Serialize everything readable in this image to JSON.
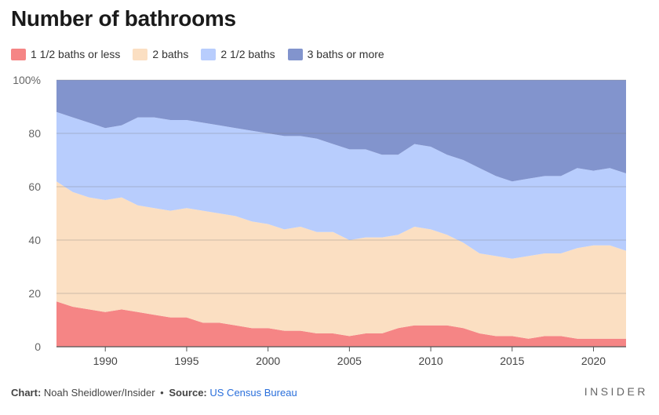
{
  "title": "Number of bathrooms",
  "legend": [
    {
      "label": "1 1/2 baths or less",
      "color": "#f58585"
    },
    {
      "label": "2 baths",
      "color": "#fbdfc2"
    },
    {
      "label": "2 1/2 baths",
      "color": "#b8cdfd"
    },
    {
      "label": "3 baths or more",
      "color": "#8294cd"
    }
  ],
  "footer": {
    "chart_label": "Chart:",
    "chart_author": "Noah Sheidlower/Insider",
    "separator": "•",
    "source_label": "Source:",
    "source_name": "US Census Bureau"
  },
  "brand": "INSIDER",
  "chart_data": {
    "type": "area",
    "stacked": true,
    "title": "Number of bathrooms",
    "xlabel": "",
    "ylabel": "",
    "xlim": [
      1987,
      2022
    ],
    "ylim": [
      0,
      100
    ],
    "x_ticks": [
      1990,
      1995,
      2000,
      2005,
      2010,
      2015,
      2020
    ],
    "y_ticks": [
      0,
      20,
      40,
      60,
      80,
      100
    ],
    "y_tick_labels": [
      "0",
      "20",
      "40",
      "60",
      "80",
      "100%"
    ],
    "grid": "horizontal",
    "legend_position": "top-left",
    "x": [
      1987,
      1988,
      1989,
      1990,
      1991,
      1992,
      1993,
      1994,
      1995,
      1996,
      1997,
      1998,
      1999,
      2000,
      2001,
      2002,
      2003,
      2004,
      2005,
      2006,
      2007,
      2008,
      2009,
      2010,
      2011,
      2012,
      2013,
      2014,
      2015,
      2016,
      2017,
      2018,
      2019,
      2020,
      2021,
      2022
    ],
    "series": [
      {
        "name": "1 1/2 baths or less",
        "color": "#f58585",
        "values": [
          17,
          15,
          14,
          13,
          14,
          13,
          12,
          11,
          11,
          9,
          9,
          8,
          7,
          7,
          6,
          6,
          5,
          5,
          4,
          5,
          5,
          7,
          8,
          8,
          8,
          7,
          5,
          4,
          4,
          3,
          4,
          4,
          3,
          3,
          3,
          3
        ]
      },
      {
        "name": "2 baths",
        "color": "#fbdfc2",
        "values": [
          45,
          43,
          42,
          42,
          42,
          40,
          40,
          40,
          41,
          42,
          41,
          41,
          40,
          39,
          38,
          39,
          38,
          38,
          36,
          36,
          36,
          35,
          37,
          36,
          34,
          32,
          30,
          30,
          29,
          31,
          31,
          31,
          34,
          35,
          35,
          33
        ]
      },
      {
        "name": "2 1/2 baths",
        "color": "#b8cdfd",
        "values": [
          26,
          28,
          28,
          27,
          27,
          33,
          34,
          34,
          33,
          33,
          33,
          33,
          34,
          34,
          35,
          34,
          35,
          33,
          34,
          33,
          31,
          30,
          31,
          31,
          30,
          31,
          32,
          30,
          29,
          29,
          29,
          29,
          30,
          28,
          29,
          29
        ]
      },
      {
        "name": "3 baths or more",
        "color": "#8294cd",
        "values": [
          12,
          14,
          16,
          18,
          17,
          14,
          14,
          15,
          15,
          16,
          17,
          18,
          19,
          20,
          21,
          21,
          22,
          24,
          26,
          26,
          28,
          28,
          24,
          25,
          28,
          30,
          33,
          36,
          38,
          37,
          36,
          36,
          33,
          34,
          33,
          35
        ]
      }
    ]
  }
}
